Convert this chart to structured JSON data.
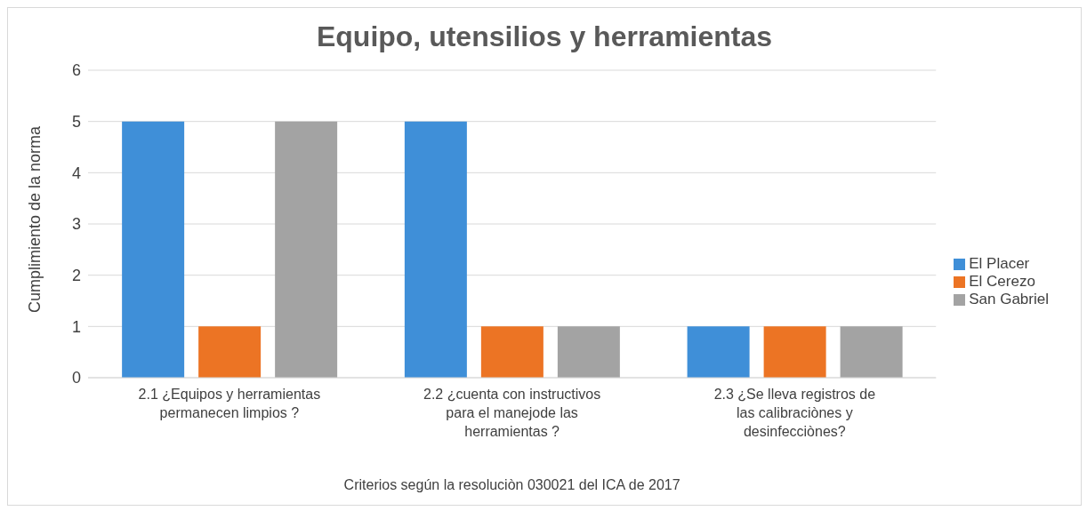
{
  "chart_data": {
    "type": "bar",
    "title": "Equipo, utensilios y herramientas",
    "xlabel": "Criterios según la resoluciòn 030021 del ICA de 2017",
    "ylabel": "Cumplimiento de la norma",
    "categories": [
      "2.1 ¿Equipos y herramientas permanecen limpios ?",
      "2.2 ¿cuenta con instructivos para el manejode las herramientas ?",
      "2.3 ¿Se lleva registros de las calibraciònes y desinfecciònes?"
    ],
    "series": [
      {
        "name": "El Placer",
        "color": "#3f8fd8",
        "values": [
          5,
          5,
          1
        ]
      },
      {
        "name": "El Cerezo",
        "color": "#ec7424",
        "values": [
          1,
          1,
          1
        ]
      },
      {
        "name": "San Gabriel",
        "color": "#a3a3a3",
        "values": [
          5,
          1,
          1
        ]
      }
    ],
    "ylim": [
      0,
      6
    ],
    "yticks": [
      0,
      1,
      2,
      3,
      4,
      5,
      6
    ],
    "grid": "y",
    "legend": "right"
  }
}
